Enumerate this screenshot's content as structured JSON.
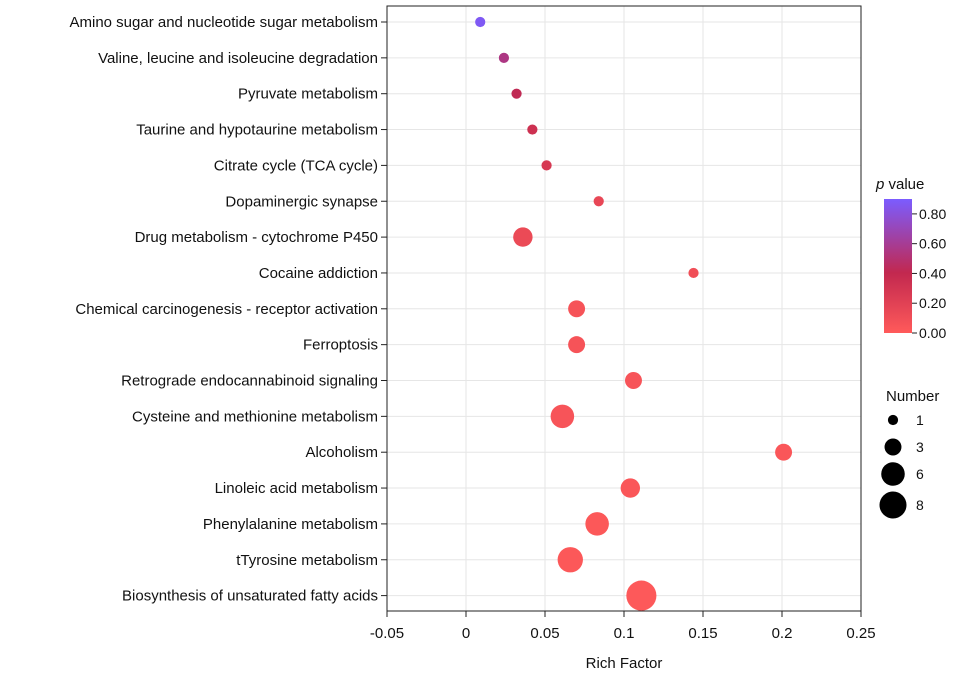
{
  "chart_data": {
    "type": "scatter",
    "xlabel": "Rich Factor",
    "xlim": [
      -0.05,
      0.25
    ],
    "xticks": [
      "-0.05",
      "0",
      "0.05",
      "0.1",
      "0.15",
      "0.2",
      "0.25"
    ],
    "xtick_values": [
      -0.05,
      0,
      0.05,
      0.1,
      0.15,
      0.2,
      0.25
    ],
    "grid": true,
    "categories": [
      "Amino sugar and nucleotide sugar metabolism",
      "Valine, leucine and isoleucine degradation",
      "Pyruvate metabolism",
      "Taurine and hypotaurine metabolism",
      "Citrate cycle (TCA cycle)",
      "Dopaminergic synapse",
      "Drug metabolism - cytochrome P450",
      "Cocaine addiction",
      "Chemical carcinogenesis - receptor activation",
      "Ferroptosis",
      "Retrograde endocannabinoid signaling",
      "Cysteine and methionine metabolism",
      "Alcoholism",
      "Linoleic acid metabolism",
      "Phenylalanine metabolism",
      "tTyrosine metabolism",
      "Biosynthesis of unsaturated fatty acids"
    ],
    "points": [
      {
        "rich_factor": 0.009,
        "number": 1,
        "p_value": 0.87
      },
      {
        "rich_factor": 0.024,
        "number": 1,
        "p_value": 0.55
      },
      {
        "rich_factor": 0.032,
        "number": 1,
        "p_value": 0.42
      },
      {
        "rich_factor": 0.042,
        "number": 1,
        "p_value": 0.33
      },
      {
        "rich_factor": 0.051,
        "number": 1,
        "p_value": 0.27
      },
      {
        "rich_factor": 0.084,
        "number": 1,
        "p_value": 0.15
      },
      {
        "rich_factor": 0.036,
        "number": 4,
        "p_value": 0.13
      },
      {
        "rich_factor": 0.144,
        "number": 1,
        "p_value": 0.1
      },
      {
        "rich_factor": 0.07,
        "number": 3,
        "p_value": 0.06
      },
      {
        "rich_factor": 0.07,
        "number": 3,
        "p_value": 0.06
      },
      {
        "rich_factor": 0.106,
        "number": 3,
        "p_value": 0.05
      },
      {
        "rich_factor": 0.061,
        "number": 6,
        "p_value": 0.05
      },
      {
        "rich_factor": 0.201,
        "number": 3,
        "p_value": 0.03
      },
      {
        "rich_factor": 0.104,
        "number": 4,
        "p_value": 0.03
      },
      {
        "rich_factor": 0.083,
        "number": 6,
        "p_value": 0.02
      },
      {
        "rich_factor": 0.066,
        "number": 7,
        "p_value": 0.02
      },
      {
        "rich_factor": 0.111,
        "number": 10,
        "p_value": 0.01
      }
    ],
    "color_legend": {
      "title_italic": "p",
      "title_rest": " value",
      "ticks": [
        "0.00",
        "0.20",
        "0.40",
        "0.60",
        "0.80"
      ],
      "tick_values": [
        0,
        0.2,
        0.4,
        0.6,
        0.8
      ],
      "range": [
        0,
        0.9
      ],
      "color_low": "#ff5a5a",
      "color_mid": "#c2284f",
      "color_high": "#7b5cff"
    },
    "size_legend": {
      "title": "Number",
      "entries": [
        {
          "label": "1",
          "value": 1
        },
        {
          "label": "3",
          "value": 3
        },
        {
          "label": "6",
          "value": 6
        },
        {
          "label": "8",
          "value": 8
        }
      ]
    }
  }
}
